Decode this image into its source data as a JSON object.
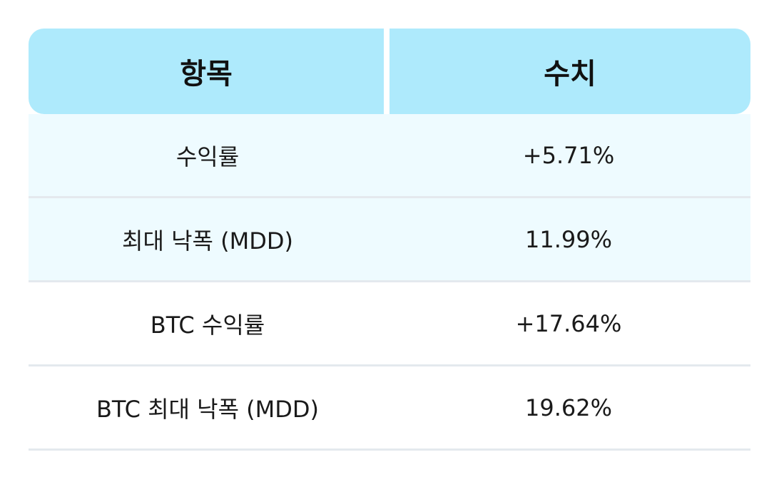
{
  "table": {
    "headers": {
      "item": "항목",
      "value": "수치"
    },
    "rows": [
      {
        "item": "수익률",
        "value": "+5.71%",
        "highlight": true
      },
      {
        "item": "최대 낙폭 (MDD)",
        "value": "11.99%",
        "highlight": true
      },
      {
        "item": "BTC 수익률",
        "value": "+17.64%",
        "highlight": false
      },
      {
        "item": "BTC 최대 낙폭 (MDD)",
        "value": "19.62%",
        "highlight": false
      }
    ],
    "colors": {
      "header_bg": "#aeeafc",
      "highlight_bg": "#eefbff",
      "divider": "#e4e9ee"
    }
  }
}
